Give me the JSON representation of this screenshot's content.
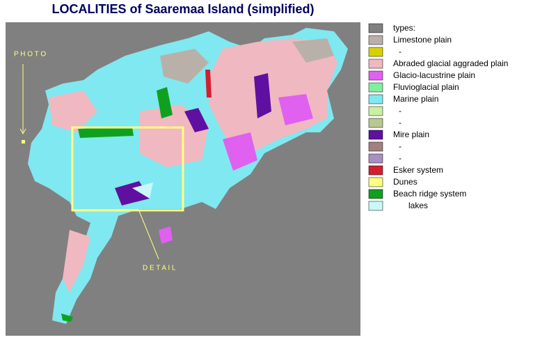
{
  "header": {
    "title": "LOCALITIES of Saaremaa Island (simplified)"
  },
  "annotations": {
    "photo": "P H O T O",
    "detail": "D E T A I L"
  },
  "legend": {
    "items": [
      {
        "label": "types:",
        "color": "#808080"
      },
      {
        "label": "Limestone plain",
        "color": "#b9b1a9"
      },
      {
        "label": "-",
        "color": "#d8d000"
      },
      {
        "label": "Abraded glacial aggraded plain",
        "color": "#f0b8c0"
      },
      {
        "label": "Glacio-lacustrine plain",
        "color": "#e060f0"
      },
      {
        "label": "Fluvioglacial plain",
        "color": "#80f0a0"
      },
      {
        "label": "Marine plain",
        "color": "#80e8f0"
      },
      {
        "label": "-",
        "color": "#c8f0a0"
      },
      {
        "label": "-",
        "color": "#b8c890"
      },
      {
        "label": "Mire plain",
        "color": "#6010a0"
      },
      {
        "label": "-",
        "color": "#a08080"
      },
      {
        "label": "-",
        "color": "#a890c0"
      },
      {
        "label": "Esker system",
        "color": "#d02030"
      },
      {
        "label": "Dunes",
        "color": "#ffff80"
      },
      {
        "label": "Beach ridge system",
        "color": "#10a020"
      },
      {
        "label": "lakes",
        "color": "#c8f8f8"
      }
    ]
  }
}
